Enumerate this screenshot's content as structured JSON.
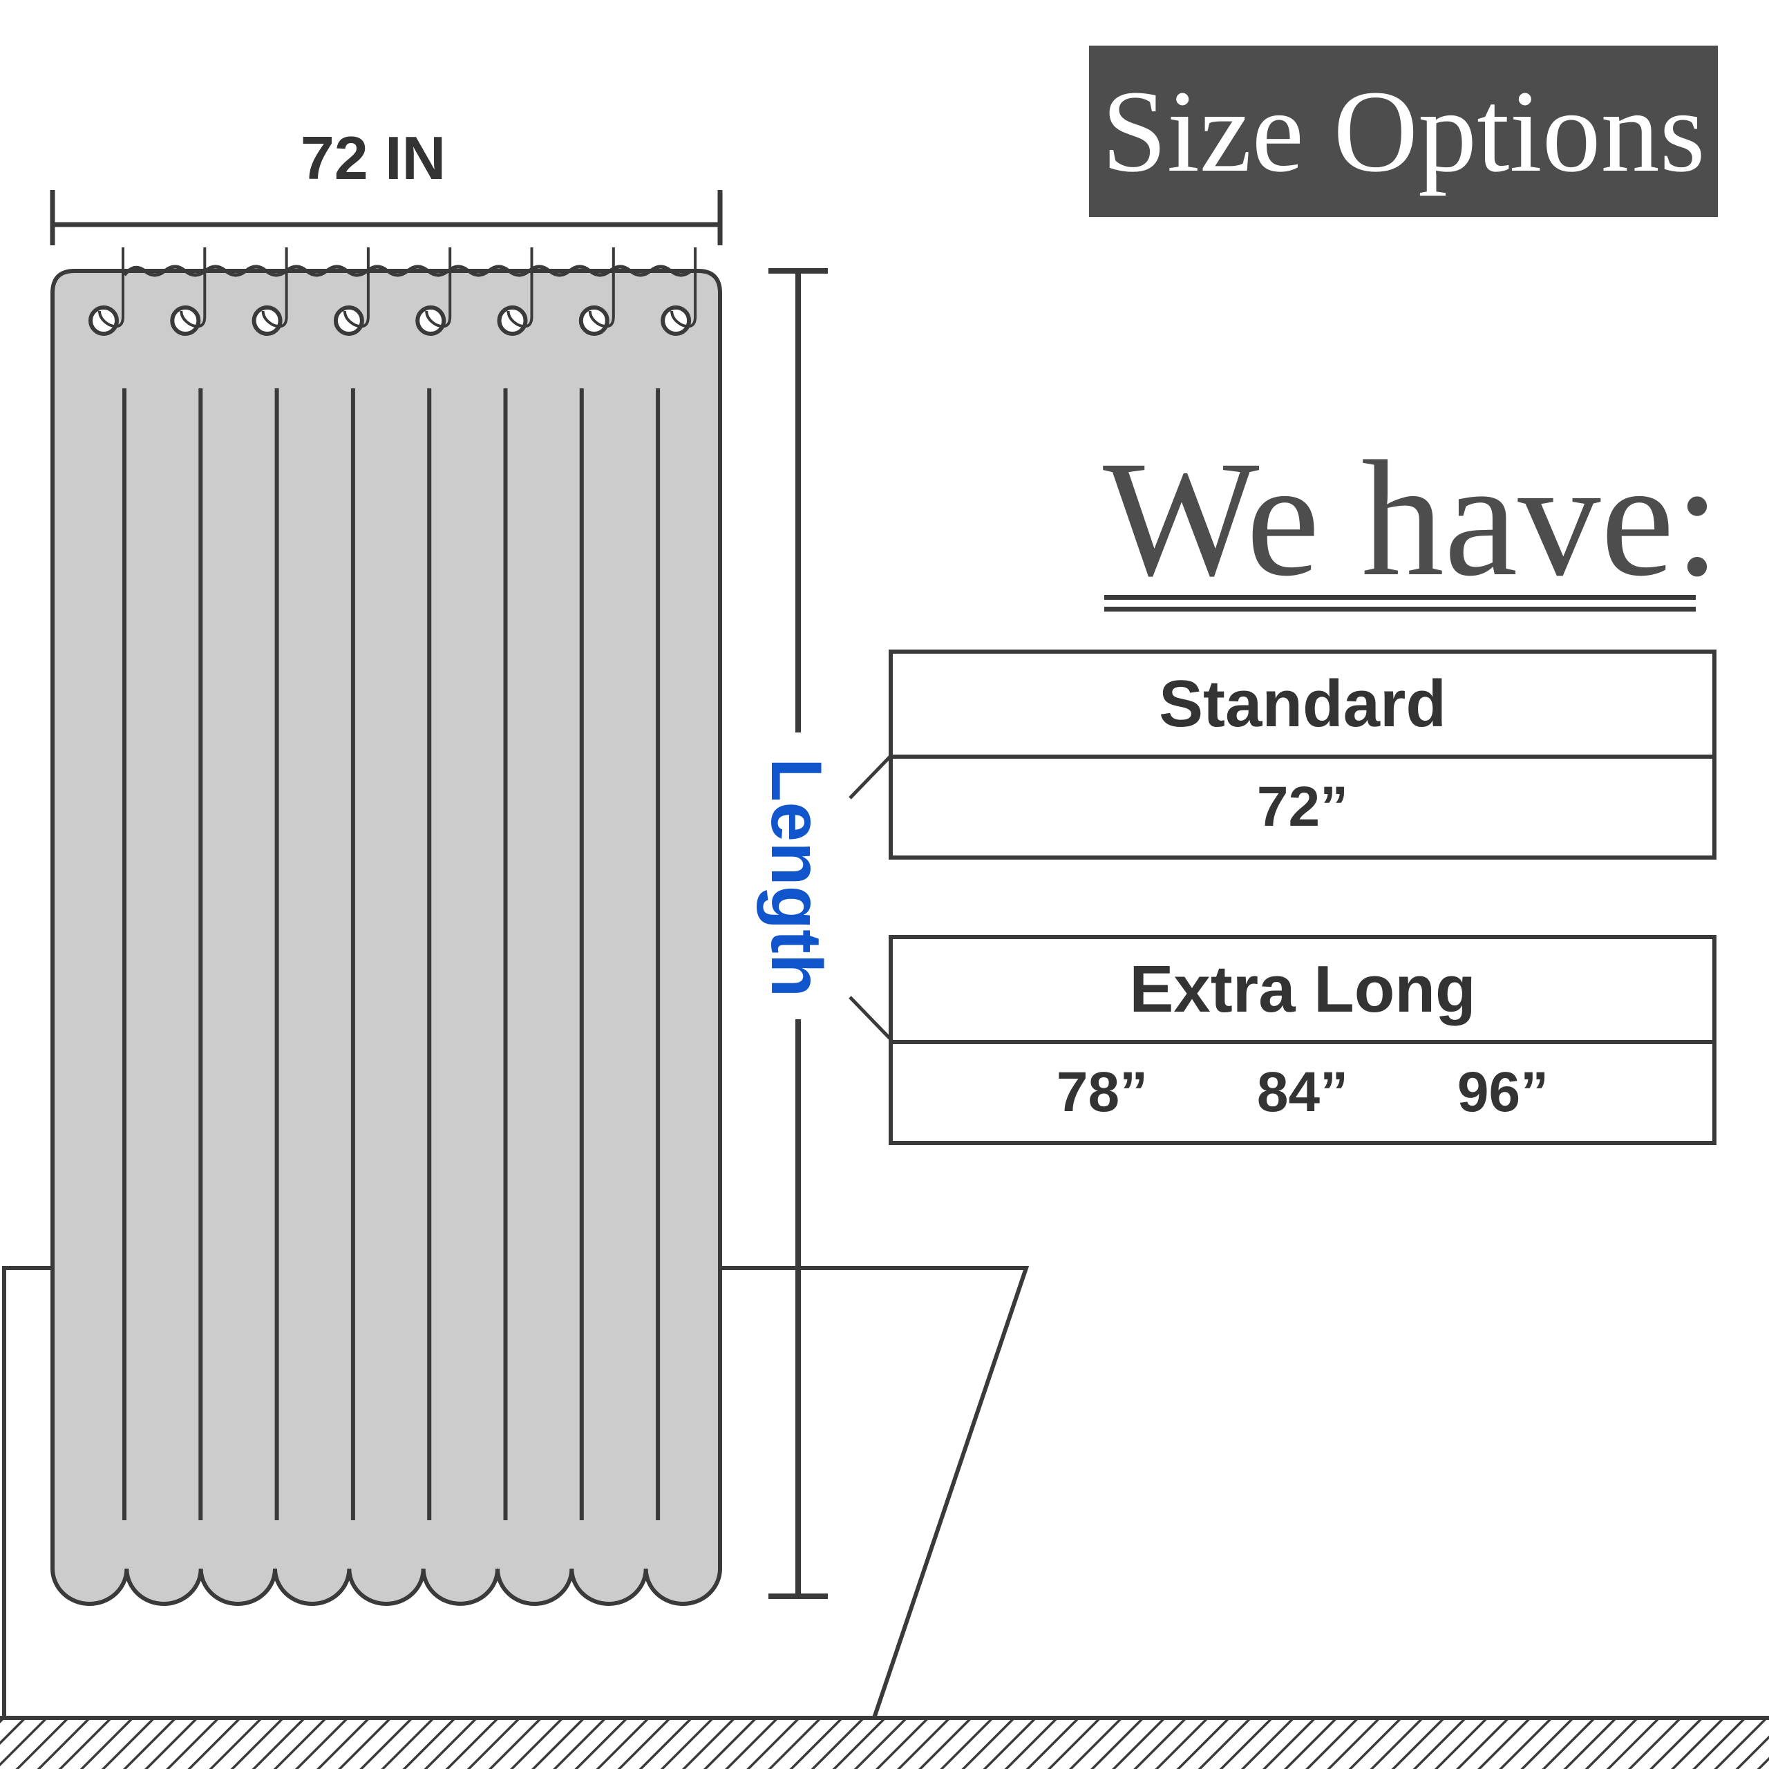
{
  "title": "Size Options",
  "subtitle": "We have:",
  "diagram": {
    "width_label": "72 IN",
    "length_label": "Length",
    "grommet_count": 8,
    "colors": {
      "curtain_fill": "#cccccc",
      "outline": "#3a3a3a",
      "length_label": "#1155cc",
      "title_background": "#4d4d4d"
    }
  },
  "options": [
    {
      "name": "Standard",
      "values": [
        "72”"
      ]
    },
    {
      "name": "Extra Long",
      "values": [
        "78”",
        "84”",
        "96”"
      ]
    }
  ]
}
